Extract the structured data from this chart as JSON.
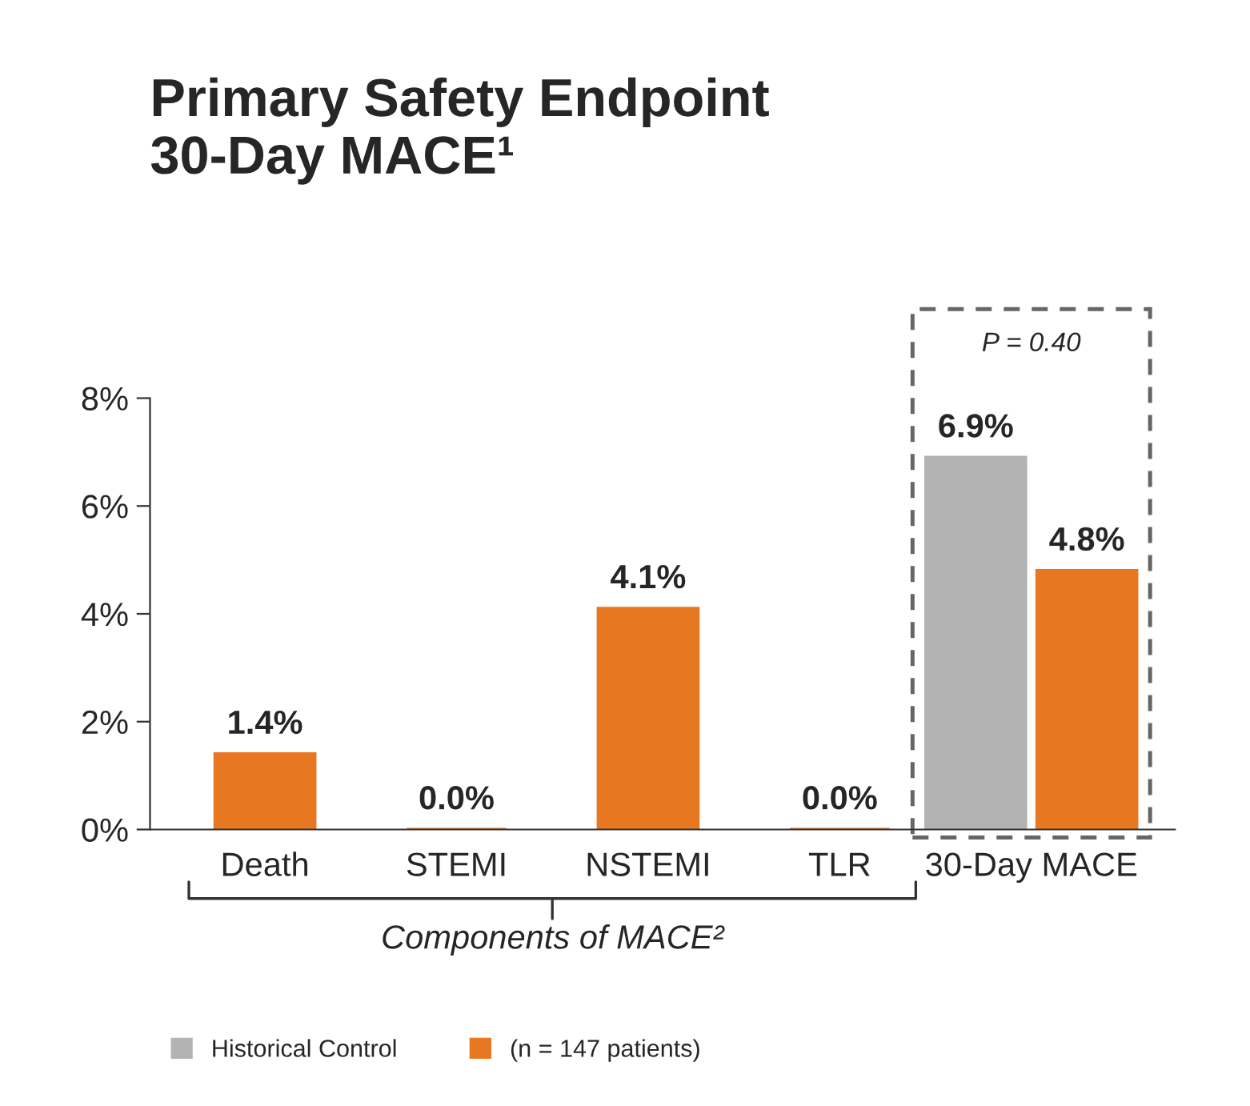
{
  "chart_data": {
    "type": "bar",
    "title": "Primary Safety Endpoint\n30-Day MACE¹",
    "categories": [
      "Death",
      "STEMI",
      "NSTEMI",
      "TLR",
      "30-Day MACE"
    ],
    "series": [
      {
        "name": "Historical Control",
        "color": "#b3b3b3",
        "values": [
          null,
          null,
          null,
          null,
          6.9
        ],
        "value_labels": [
          null,
          null,
          null,
          null,
          "6.9%"
        ]
      },
      {
        "name": "(n = 147 patients)",
        "color": "#e87722",
        "values": [
          1.4,
          0.0,
          4.1,
          0.0,
          4.8
        ],
        "value_labels": [
          "1.4%",
          "0.0%",
          "4.1%",
          "0.0%",
          "4.8%"
        ]
      }
    ],
    "ylim": [
      0,
      8
    ],
    "yticks": [
      {
        "value": 0,
        "label": "0%"
      },
      {
        "value": 2,
        "label": "2%"
      },
      {
        "value": 4,
        "label": "4%"
      },
      {
        "value": 6,
        "label": "6%"
      },
      {
        "value": 8,
        "label": "8%"
      }
    ],
    "annotations": [
      "P = 0.40",
      "Components of MACE²"
    ],
    "grid": false,
    "legend": "bottom"
  }
}
